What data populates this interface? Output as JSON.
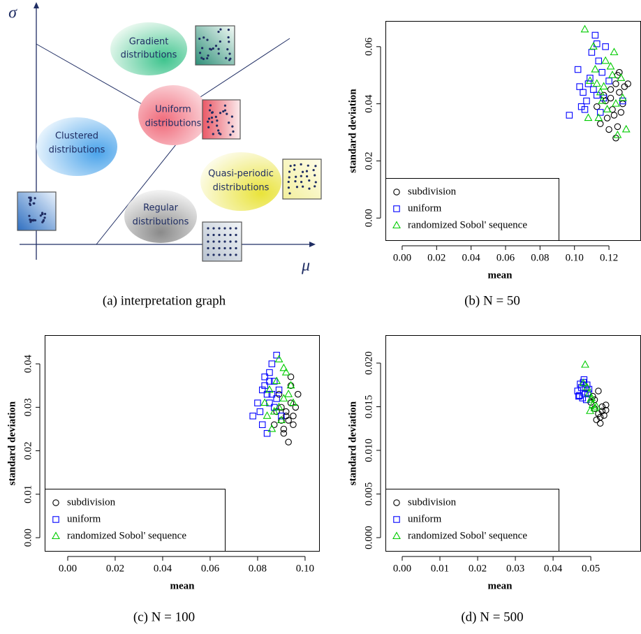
{
  "diagram": {
    "caption": "(a) interpretation graph",
    "y_axis_label": "σ",
    "x_axis_label": "μ",
    "nodes": [
      {
        "label": [
          "Gradient",
          "distributions"
        ]
      },
      {
        "label": [
          "Uniform",
          "distributions"
        ]
      },
      {
        "label": [
          "Clustered",
          "distributions"
        ]
      },
      {
        "label": [
          "Quasi-periodic",
          "distributions"
        ]
      },
      {
        "label": [
          "Regular",
          "distributions"
        ]
      }
    ]
  },
  "chart_data": [
    {
      "type": "scatter",
      "caption": "(b) N = 50",
      "x_label": "mean",
      "y_label": "standard deviation",
      "xlim": [
        -0.0097,
        0.1386
      ],
      "ylim": [
        -0.008,
        0.069
      ],
      "xticks": [
        {
          "value": 0,
          "label": "0.00"
        },
        0.02,
        0.04,
        0.06,
        0.08,
        {
          "value": 0.1,
          "label": "0.10"
        },
        0.12
      ],
      "yticks": [
        {
          "value": 0,
          "label": "0.00"
        },
        0.02,
        0.04,
        0.06
      ],
      "legend": "bottom left",
      "series": [
        {
          "name": "subdivision",
          "color": "#000000",
          "marker": "circle",
          "x": [
            0.118,
            0.121,
            0.124,
            0.126,
            0.129,
            0.131,
            0.119,
            0.122,
            0.125,
            0.128,
            0.115,
            0.117,
            0.12,
            0.123,
            0.126,
            0.124,
            0.127,
            0.113,
            0.121,
            0.125
          ],
          "values": [
            0.041,
            0.045,
            0.047,
            0.051,
            0.046,
            0.047,
            0.035,
            0.038,
            0.032,
            0.04,
            0.033,
            0.043,
            0.031,
            0.036,
            0.044,
            0.028,
            0.037,
            0.039,
            0.042,
            0.05
          ]
        },
        {
          "name": "uniform",
          "color": "#0000ff",
          "marker": "square",
          "x": [
            0.097,
            0.102,
            0.105,
            0.108,
            0.11,
            0.112,
            0.114,
            0.116,
            0.118,
            0.12,
            0.104,
            0.107,
            0.111,
            0.113,
            0.115,
            0.109,
            0.103,
            0.128,
            0.117,
            0.106,
            0.113
          ],
          "values": [
            0.036,
            0.052,
            0.044,
            0.047,
            0.058,
            0.064,
            0.055,
            0.051,
            0.06,
            0.048,
            0.039,
            0.041,
            0.045,
            0.043,
            0.037,
            0.049,
            0.046,
            0.041,
            0.042,
            0.038,
            0.061
          ]
        },
        {
          "name": "randomized Sobol' sequence",
          "color": "#00cc00",
          "marker": "triangle",
          "x": [
            0.106,
            0.109,
            0.112,
            0.115,
            0.118,
            0.121,
            0.124,
            0.127,
            0.13,
            0.111,
            0.114,
            0.117,
            0.119,
            0.122,
            0.125,
            0.108,
            0.123,
            0.128,
            0.116,
            0.113
          ],
          "values": [
            0.066,
            0.048,
            0.052,
            0.044,
            0.055,
            0.053,
            0.04,
            0.049,
            0.031,
            0.06,
            0.035,
            0.046,
            0.038,
            0.05,
            0.029,
            0.035,
            0.058,
            0.042,
            0.041,
            0.047
          ]
        }
      ]
    },
    {
      "type": "scatter",
      "caption": "(c) N = 100",
      "x_label": "mean",
      "y_label": "standard deviation",
      "xlim": [
        -0.0097,
        0.1062
      ],
      "ylim": [
        -0.0032,
        0.0466
      ],
      "xticks": [
        {
          "value": 0,
          "label": "0.00"
        },
        0.02,
        0.04,
        0.06,
        0.08,
        {
          "value": 0.1,
          "label": "0.10"
        }
      ],
      "yticks": [
        {
          "value": 0,
          "label": "0.00"
        },
        0.01,
        0.02,
        0.03,
        0.04
      ],
      "legend": "bottom left",
      "series": [
        {
          "name": "subdivision",
          "color": "#000000",
          "marker": "circle",
          "x": [
            0.09,
            0.092,
            0.094,
            0.096,
            0.093,
            0.091,
            0.095,
            0.089,
            0.087,
            0.094,
            0.092,
            0.097,
            0.09,
            0.093,
            0.095,
            0.088,
            0.091,
            0.094
          ],
          "values": [
            0.027,
            0.029,
            0.031,
            0.03,
            0.022,
            0.025,
            0.028,
            0.033,
            0.026,
            0.035,
            0.028,
            0.033,
            0.03,
            0.027,
            0.026,
            0.029,
            0.024,
            0.037
          ]
        },
        {
          "name": "uniform",
          "color": "#0000ff",
          "marker": "square",
          "x": [
            0.078,
            0.08,
            0.082,
            0.083,
            0.084,
            0.085,
            0.086,
            0.087,
            0.088,
            0.089,
            0.081,
            0.083,
            0.085,
            0.087,
            0.086,
            0.084,
            0.09,
            0.082,
            0.088,
            0.085
          ],
          "values": [
            0.028,
            0.031,
            0.026,
            0.035,
            0.033,
            0.038,
            0.04,
            0.036,
            0.042,
            0.034,
            0.029,
            0.037,
            0.031,
            0.03,
            0.033,
            0.024,
            0.028,
            0.034,
            0.032,
            0.036
          ]
        },
        {
          "name": "randomized Sobol' sequence",
          "color": "#00cc00",
          "marker": "triangle",
          "x": [
            0.083,
            0.085,
            0.087,
            0.089,
            0.091,
            0.093,
            0.095,
            0.088,
            0.09,
            0.092,
            0.086,
            0.094,
            0.084,
            0.089,
            0.091
          ],
          "values": [
            0.031,
            0.034,
            0.029,
            0.041,
            0.039,
            0.033,
            0.031,
            0.036,
            0.027,
            0.038,
            0.025,
            0.035,
            0.028,
            0.03,
            0.032
          ]
        }
      ]
    },
    {
      "type": "scatter",
      "caption": "(d) N = 500",
      "x_label": "mean",
      "y_label": "standard deviation",
      "xlim": [
        -0.00444,
        0.0633
      ],
      "ylim": [
        -0.0016,
        0.0232
      ],
      "xticks": [
        {
          "value": 0,
          "label": "0.00"
        },
        0.01,
        0.02,
        0.03,
        0.04,
        0.05
      ],
      "yticks": [
        {
          "value": 0,
          "label": "0.000"
        },
        {
          "value": 0.005,
          "label": "0.005"
        },
        {
          "value": 0.01,
          "label": "0.010"
        },
        {
          "value": 0.015,
          "label": "0.015"
        },
        {
          "value": 0.02,
          "label": "0.020"
        }
      ],
      "legend": "bottom left",
      "series": [
        {
          "name": "subdivision",
          "color": "#000000",
          "marker": "circle",
          "x": [
            0.05,
            0.051,
            0.052,
            0.053,
            0.054,
            0.0515,
            0.0525,
            0.0535,
            0.052,
            0.051,
            0.053,
            0.0505,
            0.0525,
            0.054
          ],
          "values": [
            0.0155,
            0.0148,
            0.0142,
            0.0145,
            0.0152,
            0.0135,
            0.0131,
            0.014,
            0.0168,
            0.0158,
            0.015,
            0.0162,
            0.0138,
            0.0146
          ]
        },
        {
          "name": "uniform",
          "color": "#0000ff",
          "marker": "square",
          "x": [
            0.0465,
            0.047,
            0.0475,
            0.048,
            0.0485,
            0.049,
            0.0495,
            0.0478,
            0.0482,
            0.0488,
            0.0472,
            0.0492,
            0.0485,
            0.0468
          ],
          "values": [
            0.0168,
            0.0163,
            0.0172,
            0.0178,
            0.0165,
            0.0175,
            0.017,
            0.016,
            0.0181,
            0.0158,
            0.0176,
            0.0166,
            0.0171,
            0.0162
          ]
        },
        {
          "name": "randomized Sobol' sequence",
          "color": "#00cc00",
          "marker": "triangle",
          "x": [
            0.0485,
            0.0495,
            0.05,
            0.0505,
            0.051,
            0.049,
            0.0498,
            0.0502,
            0.0515,
            0.048
          ],
          "values": [
            0.0198,
            0.0165,
            0.0158,
            0.0152,
            0.0148,
            0.0172,
            0.0145,
            0.016,
            0.015,
            0.0177
          ]
        }
      ]
    }
  ]
}
